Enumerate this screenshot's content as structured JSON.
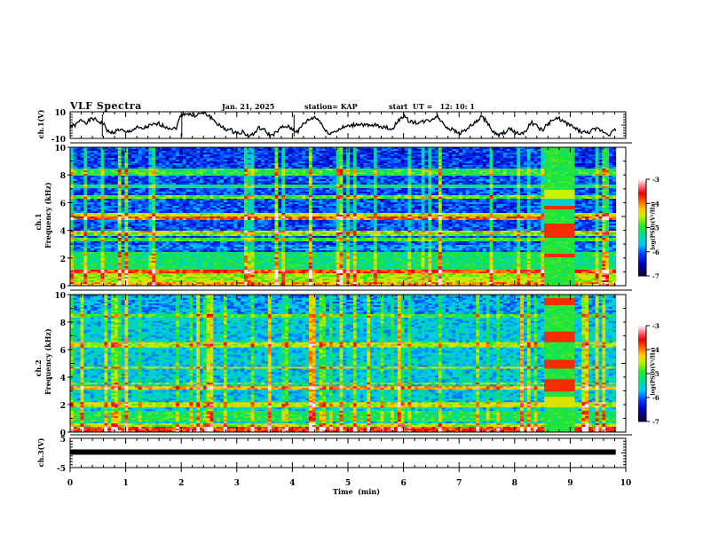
{
  "header": {
    "title": "VLF Spectra",
    "date": "Jan. 21, 2025",
    "station": "station= KAP",
    "start_ut": "start  UT =   12: 10: 1"
  },
  "chart_data": [
    {
      "name": "ch1-waveform",
      "type": "line",
      "ylabel": "ch.1(V)",
      "ylim": [
        -10,
        10
      ],
      "yticks": [
        "10",
        "-10"
      ],
      "xlim": [
        0,
        10
      ],
      "data_end_min": 9.82,
      "x": [
        0,
        0.1,
        0.2,
        0.3,
        0.4,
        0.5,
        0.6,
        0.7,
        0.8,
        0.9,
        1.0,
        1.1,
        1.2,
        1.3,
        1.4,
        1.5,
        1.6,
        1.7,
        1.8,
        1.9,
        2.0,
        2.1,
        2.2,
        2.3,
        2.4,
        2.5,
        2.6,
        2.7,
        2.8,
        2.9,
        3.0,
        3.1,
        3.2,
        3.3,
        3.4,
        3.5,
        3.6,
        3.7,
        3.8,
        3.9,
        4.0,
        4.1,
        4.2,
        4.3,
        4.4,
        4.5,
        4.6,
        4.7,
        4.8,
        4.9,
        5.0,
        5.1,
        5.2,
        5.3,
        5.4,
        5.5,
        5.6,
        5.7,
        5.8,
        5.9,
        6.0,
        6.1,
        6.2,
        6.3,
        6.4,
        6.5,
        6.6,
        6.7,
        6.8,
        6.9,
        7.0,
        7.1,
        7.2,
        7.3,
        7.4,
        7.5,
        7.6,
        7.7,
        7.8,
        7.9,
        8.0,
        8.1,
        8.2,
        8.3,
        8.4,
        8.5,
        8.6,
        8.7,
        8.8,
        8.9,
        9.0,
        9.1,
        9.2,
        9.3,
        9.4,
        9.5,
        9.6,
        9.7,
        9.8
      ],
      "y": [
        -1,
        0,
        4,
        2,
        5,
        3,
        1,
        -6,
        -5,
        -3,
        -6,
        -4,
        -2,
        -3,
        -1,
        0,
        1,
        -1,
        -2,
        -3,
        8,
        9,
        7,
        8,
        9,
        7,
        3,
        -1,
        -3,
        -4,
        -6,
        -5,
        -8,
        -7,
        -2,
        -4,
        -8,
        -6,
        -2,
        -1,
        -3,
        -5,
        1,
        4,
        6,
        3,
        -5,
        -6,
        -4,
        -2,
        -1,
        0,
        1,
        0,
        -1,
        0,
        -1,
        -2,
        -3,
        3,
        7,
        3,
        2,
        2,
        3,
        4,
        7,
        2,
        -2,
        -4,
        -6,
        -4,
        -1,
        2,
        6,
        3,
        -5,
        -8,
        -6,
        -3,
        -5,
        -7,
        -4,
        2,
        -1,
        -4,
        1,
        4,
        5,
        2,
        0,
        -3,
        -5,
        -6,
        -4,
        -3,
        -5,
        -7,
        -4
      ]
    },
    {
      "name": "ch1-spectrogram",
      "type": "heatmap",
      "ylabel_line1": "ch.1",
      "ylabel_line2": "Frequency (kHz)",
      "ylim": [
        0,
        10
      ],
      "yticks": [
        "0",
        "2",
        "4",
        "6",
        "8",
        "10"
      ],
      "xlim": [
        0,
        10
      ],
      "data_end_min": 9.82,
      "anomaly_block_min": [
        8.55,
        9.1
      ],
      "colorbar": {
        "label": "log(PSD)(V²/Hz)",
        "range": [
          -7,
          -3
        ],
        "ticks": [
          "-3",
          "-4",
          "-5",
          "-6",
          "-7"
        ]
      }
    },
    {
      "name": "ch2-spectrogram",
      "type": "heatmap",
      "ylabel_line1": "ch.2",
      "ylabel_line2": "Frequency (kHz)",
      "ylim": [
        0,
        10
      ],
      "yticks": [
        "0",
        "2",
        "4",
        "6",
        "8",
        "10"
      ],
      "xlim": [
        0,
        10
      ],
      "data_end_min": 9.82,
      "anomaly_block_min": [
        8.55,
        9.1
      ],
      "colorbar": {
        "label": "log(PSD)(V²/Hz)",
        "range": [
          -7,
          -3
        ],
        "ticks": [
          "-3",
          "-4",
          "-5",
          "-6",
          "-7"
        ]
      }
    },
    {
      "name": "ch3-waveform",
      "type": "line",
      "ylabel": "ch.3(V)",
      "ylim": [
        -5,
        5
      ],
      "yticks": [
        "5",
        "-5"
      ],
      "xlim": [
        0,
        10
      ],
      "data_end_min": 9.82,
      "level_v": 0.3
    }
  ],
  "xaxis": {
    "label": "Time  (min)",
    "ticks": [
      "0",
      "1",
      "2",
      "3",
      "4",
      "5",
      "6",
      "7",
      "8",
      "9",
      "10"
    ]
  },
  "colors": {
    "line": "#000000",
    "bg": "#ffffff"
  }
}
